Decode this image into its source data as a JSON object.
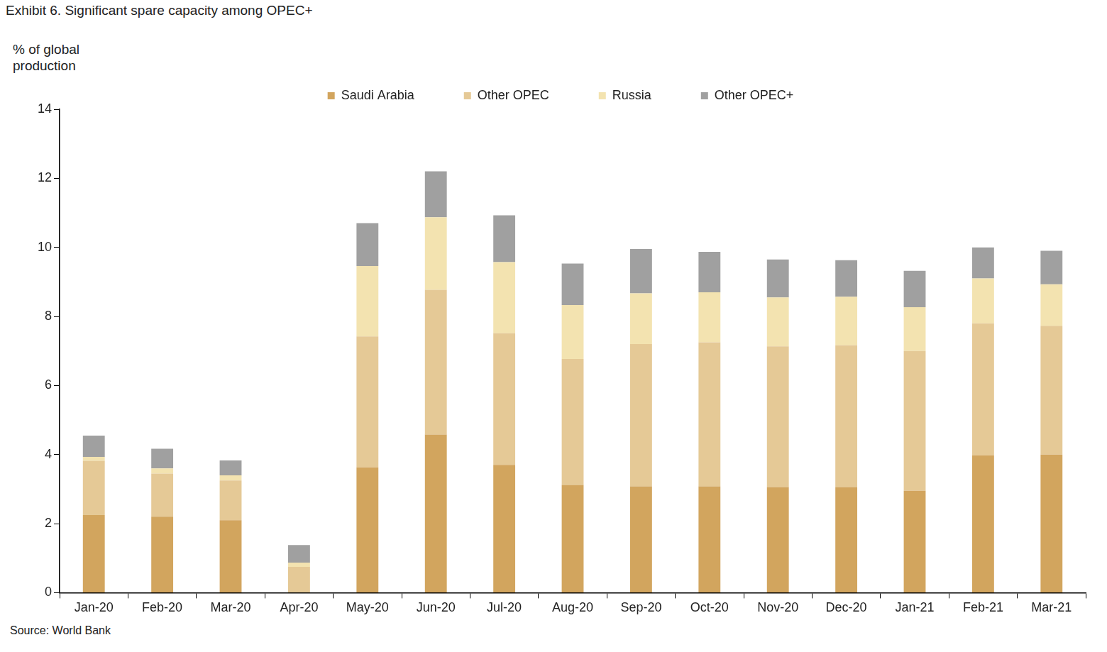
{
  "chart_data": {
    "type": "bar",
    "title": "Exhibit 6. Significant spare capacity among OPEC+",
    "y_label": "% of global production",
    "source": "Source: World Bank",
    "categories": [
      "Jan-20",
      "Feb-20",
      "Mar-20",
      "Apr-20",
      "May-20",
      "Jun-20",
      "Jul-20",
      "Aug-20",
      "Sep-20",
      "Oct-20",
      "Nov-20",
      "Dec-20",
      "Jan-21",
      "Feb-21",
      "Mar-21"
    ],
    "series": [
      {
        "name": "Saudi Arabia",
        "color": "#d2a55e",
        "values": [
          2.25,
          2.2,
          2.1,
          0,
          3.63,
          4.58,
          3.7,
          3.12,
          3.08,
          3.08,
          3.06,
          3.06,
          2.95,
          3.98,
          4.0
        ]
      },
      {
        "name": "Other OPEC",
        "color": "#e5c996",
        "values": [
          1.57,
          1.25,
          1.15,
          0.75,
          3.79,
          4.19,
          3.82,
          3.65,
          4.12,
          4.17,
          4.07,
          4.11,
          4.05,
          3.82,
          3.73
        ]
      },
      {
        "name": "Russia",
        "color": "#f3e3b0",
        "values": [
          0.11,
          0.15,
          0.15,
          0.12,
          2.04,
          2.1,
          2.05,
          1.56,
          1.47,
          1.45,
          1.42,
          1.4,
          1.27,
          1.3,
          1.2
        ]
      },
      {
        "name": "Other OPEC+",
        "color": "#a0a0a0",
        "values": [
          0.62,
          0.57,
          0.43,
          0.51,
          1.24,
          1.33,
          1.36,
          1.2,
          1.28,
          1.17,
          1.1,
          1.06,
          1.05,
          0.9,
          0.97
        ]
      }
    ],
    "stacked": true,
    "ylim": [
      0,
      14
    ],
    "yticks": [
      0,
      2,
      4,
      6,
      8,
      10,
      12,
      14
    ],
    "grid": false,
    "legend": "top"
  }
}
